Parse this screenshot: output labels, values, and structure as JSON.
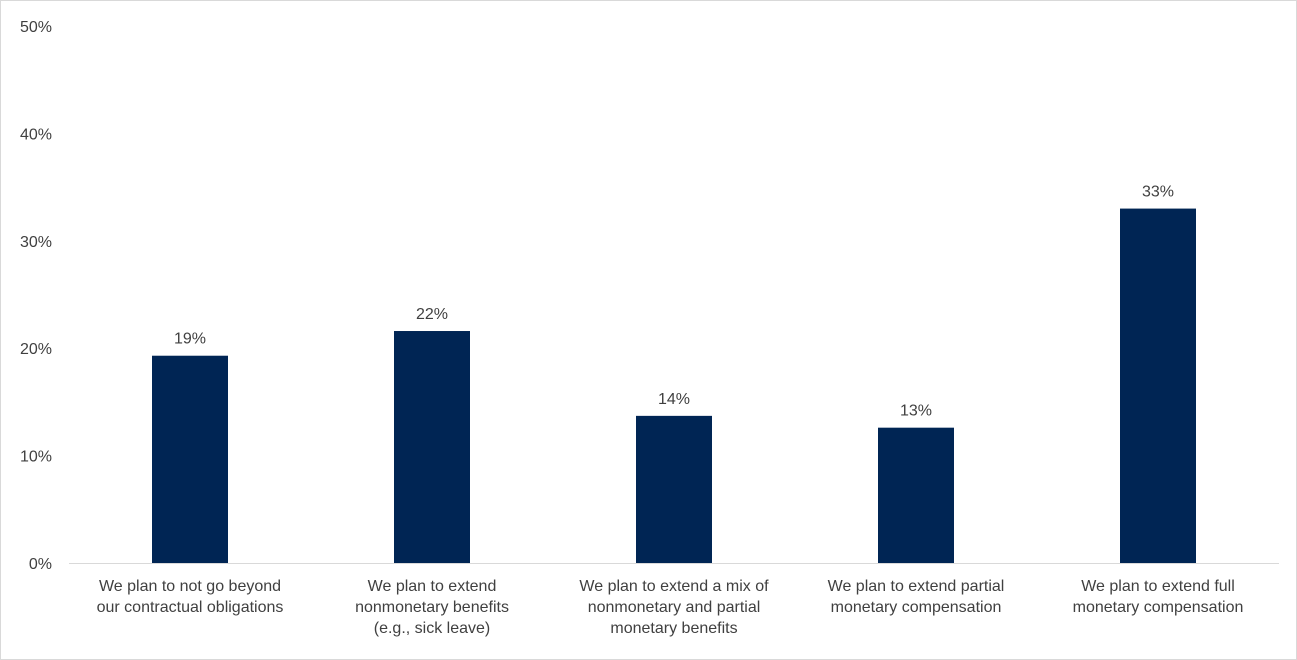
{
  "chart_data": {
    "type": "bar",
    "title": "",
    "xlabel": "",
    "ylabel": "",
    "ylim": [
      0,
      50
    ],
    "yticks": [
      0,
      10,
      20,
      30,
      40,
      50
    ],
    "ytick_labels": [
      "0%",
      "10%",
      "20%",
      "30%",
      "40%",
      "50%"
    ],
    "grid": false,
    "legend": "none",
    "bar_color": "#002554",
    "categories": [
      [
        "We plan to not go beyond",
        "our contractual obligations"
      ],
      [
        "We plan to extend",
        "nonmonetary benefits",
        "(e.g., sick leave)"
      ],
      [
        "We plan to extend a mix of",
        "nonmonetary and partial",
        "monetary benefits"
      ],
      [
        "We plan to extend partial",
        "monetary compensation"
      ],
      [
        "We plan to extend full",
        "monetary compensation"
      ]
    ],
    "values": [
      19.3,
      21.6,
      13.7,
      12.6,
      33.0
    ],
    "data_labels": [
      "19%",
      "22%",
      "14%",
      "13%",
      "33%"
    ]
  }
}
